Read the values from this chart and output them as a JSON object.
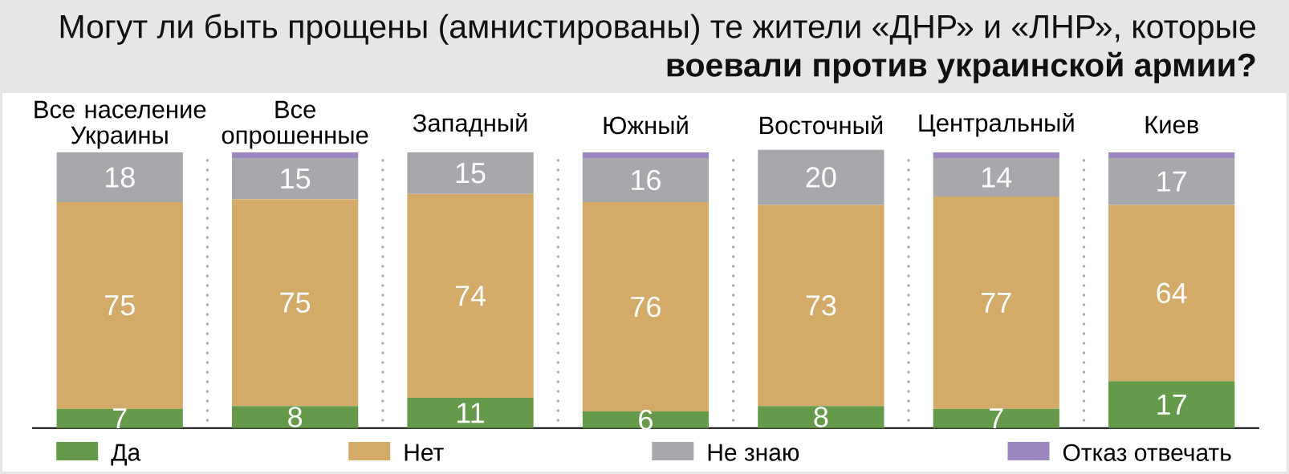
{
  "chart_data": {
    "type": "bar",
    "stacked": true,
    "title": "Могут ли быть прощены (амнистированы) те жители «ДНР» и «ЛНР», которые **воевали против украинской армии?**",
    "categories": [
      "Все население Украины",
      "Все опрошенные",
      "Западный",
      "Южный",
      "Восточный",
      "Центральный",
      "Киев"
    ],
    "series": [
      {
        "name": "Да",
        "color": "#659a4b",
        "values": [
          7,
          8,
          11,
          6,
          8,
          7,
          17
        ],
        "value_labels": [
          "7",
          "8",
          "11",
          "6",
          "8",
          "7",
          "17"
        ]
      },
      {
        "name": "Нет",
        "color": "#d3aa67",
        "values": [
          75,
          75,
          74,
          76,
          73,
          77,
          64
        ],
        "value_labels": [
          "75",
          "75",
          "74",
          "76",
          "73",
          "77",
          "64"
        ]
      },
      {
        "name": "Не знаю",
        "color": "#a7a8ab",
        "values": [
          18,
          15,
          15,
          16,
          20,
          14,
          17
        ],
        "value_labels": [
          "18",
          "15",
          "15",
          "16",
          "20",
          "14",
          "17"
        ]
      },
      {
        "name": "Отказ отвечать",
        "color": "#9c87c0",
        "values": [
          0,
          2,
          0,
          2,
          0,
          2,
          2
        ]
      }
    ],
    "tick_labels": "x",
    "legend": "bottom"
  }
}
